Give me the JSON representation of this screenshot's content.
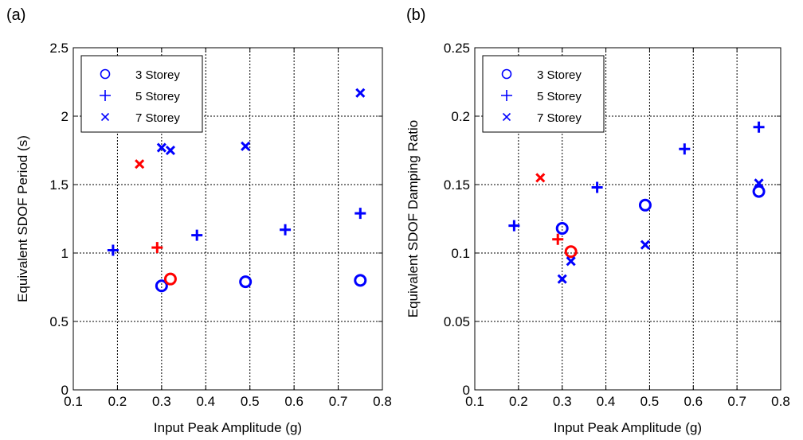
{
  "chart_data": [
    {
      "panel_label": "(a)",
      "type": "scatter",
      "xlabel": "Input Peak Amplitude (g)",
      "ylabel": "Equivalent SDOF Period (s)",
      "xlim": [
        0.1,
        0.8
      ],
      "ylim": [
        0,
        2.5
      ],
      "xticks": [
        "0.1",
        "0.2",
        "0.3",
        "0.4",
        "0.5",
        "0.6",
        "0.7",
        "0.8"
      ],
      "yticks": [
        "0",
        "0.5",
        "1",
        "1.5",
        "2",
        "2.5"
      ],
      "grid": true,
      "legend_position": "top-left",
      "series": [
        {
          "name": "3 Storey",
          "marker": "circle",
          "points": [
            {
              "x": 0.3,
              "y": 0.76,
              "color": "#0000ff"
            },
            {
              "x": 0.32,
              "y": 0.81,
              "color": "#ff0000"
            },
            {
              "x": 0.49,
              "y": 0.79,
              "color": "#0000ff"
            },
            {
              "x": 0.75,
              "y": 0.8,
              "color": "#0000ff"
            }
          ]
        },
        {
          "name": "5 Storey",
          "marker": "plus",
          "points": [
            {
              "x": 0.19,
              "y": 1.02,
              "color": "#0000ff"
            },
            {
              "x": 0.29,
              "y": 1.04,
              "color": "#ff0000"
            },
            {
              "x": 0.38,
              "y": 1.13,
              "color": "#0000ff"
            },
            {
              "x": 0.58,
              "y": 1.17,
              "color": "#0000ff"
            },
            {
              "x": 0.75,
              "y": 1.29,
              "color": "#0000ff"
            }
          ]
        },
        {
          "name": "7 Storey",
          "marker": "cross",
          "points": [
            {
              "x": 0.25,
              "y": 1.65,
              "color": "#ff0000"
            },
            {
              "x": 0.3,
              "y": 1.77,
              "color": "#0000ff"
            },
            {
              "x": 0.32,
              "y": 1.75,
              "color": "#0000ff"
            },
            {
              "x": 0.49,
              "y": 1.78,
              "color": "#0000ff"
            },
            {
              "x": 0.75,
              "y": 2.17,
              "color": "#0000ff"
            }
          ]
        }
      ]
    },
    {
      "panel_label": "(b)",
      "type": "scatter",
      "xlabel": "Input Peak Amplitude (g)",
      "ylabel": "Equivalent SDOF Damping Ratio",
      "xlim": [
        0.1,
        0.8
      ],
      "ylim": [
        0,
        0.25
      ],
      "xticks": [
        "0.1",
        "0.2",
        "0.3",
        "0.4",
        "0.5",
        "0.6",
        "0.7",
        "0.8"
      ],
      "yticks": [
        "0",
        "0.05",
        "0.1",
        "0.15",
        "0.2",
        "0.25"
      ],
      "grid": true,
      "legend_position": "top-left",
      "series": [
        {
          "name": "3 Storey",
          "marker": "circle",
          "points": [
            {
              "x": 0.3,
              "y": 0.118,
              "color": "#0000ff"
            },
            {
              "x": 0.32,
              "y": 0.101,
              "color": "#ff0000"
            },
            {
              "x": 0.49,
              "y": 0.135,
              "color": "#0000ff"
            },
            {
              "x": 0.75,
              "y": 0.145,
              "color": "#0000ff"
            }
          ]
        },
        {
          "name": "5 Storey",
          "marker": "plus",
          "points": [
            {
              "x": 0.19,
              "y": 0.12,
              "color": "#0000ff"
            },
            {
              "x": 0.29,
              "y": 0.11,
              "color": "#ff0000"
            },
            {
              "x": 0.38,
              "y": 0.148,
              "color": "#0000ff"
            },
            {
              "x": 0.58,
              "y": 0.176,
              "color": "#0000ff"
            },
            {
              "x": 0.75,
              "y": 0.192,
              "color": "#0000ff"
            }
          ]
        },
        {
          "name": "7 Storey",
          "marker": "cross",
          "points": [
            {
              "x": 0.25,
              "y": 0.155,
              "color": "#ff0000"
            },
            {
              "x": 0.3,
              "y": 0.081,
              "color": "#0000ff"
            },
            {
              "x": 0.32,
              "y": 0.094,
              "color": "#0000ff"
            },
            {
              "x": 0.49,
              "y": 0.106,
              "color": "#0000ff"
            },
            {
              "x": 0.75,
              "y": 0.151,
              "color": "#0000ff"
            }
          ]
        }
      ]
    }
  ]
}
